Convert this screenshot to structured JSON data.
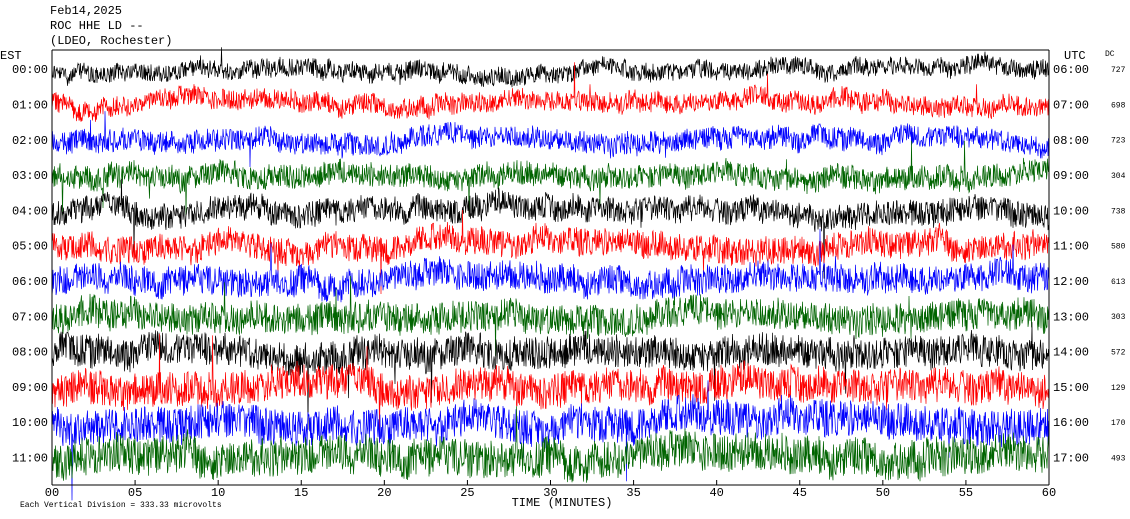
{
  "header": {
    "date": "Feb14,2025",
    "station": "ROC HHE LD --",
    "network": "(LDEO, Rochester)"
  },
  "axes": {
    "left_label": "EST",
    "right_label": "UTC",
    "dc_label": "DC",
    "x_label": "TIME (MINUTES)",
    "xlim": [
      0,
      60
    ],
    "xticks": [
      {
        "value": 0,
        "label": "00"
      },
      {
        "value": 5,
        "label": "05"
      },
      10,
      15,
      20,
      25,
      30,
      35,
      40,
      45,
      50,
      55,
      60
    ]
  },
  "rows": [
    {
      "est": "00:00",
      "utc": "06:00",
      "dc": 727,
      "color": "#000000"
    },
    {
      "est": "01:00",
      "utc": "07:00",
      "dc": 698,
      "color": "#ff0000"
    },
    {
      "est": "02:00",
      "utc": "08:00",
      "dc": 723,
      "color": "#0000ff"
    },
    {
      "est": "03:00",
      "utc": "09:00",
      "dc": 304,
      "color": "#006400"
    },
    {
      "est": "04:00",
      "utc": "10:00",
      "dc": 738,
      "color": "#000000"
    },
    {
      "est": "05:00",
      "utc": "11:00",
      "dc": 580,
      "color": "#ff0000"
    },
    {
      "est": "06:00",
      "utc": "12:00",
      "dc": 613,
      "color": "#0000ff"
    },
    {
      "est": "07:00",
      "utc": "13:00",
      "dc": 303,
      "color": "#006400"
    },
    {
      "est": "08:00",
      "utc": "14:00",
      "dc": 572,
      "color": "#000000"
    },
    {
      "est": "09:00",
      "utc": "15:00",
      "dc": 129,
      "color": "#ff0000"
    },
    {
      "est": "10:00",
      "utc": "16:00",
      "dc": 170,
      "color": "#0000ff"
    },
    {
      "est": "11:00",
      "utc": "17:00",
      "dc": 493,
      "color": "#006400"
    }
  ],
  "footer": "Each Vertical Division =  333.33 microvolts"
}
